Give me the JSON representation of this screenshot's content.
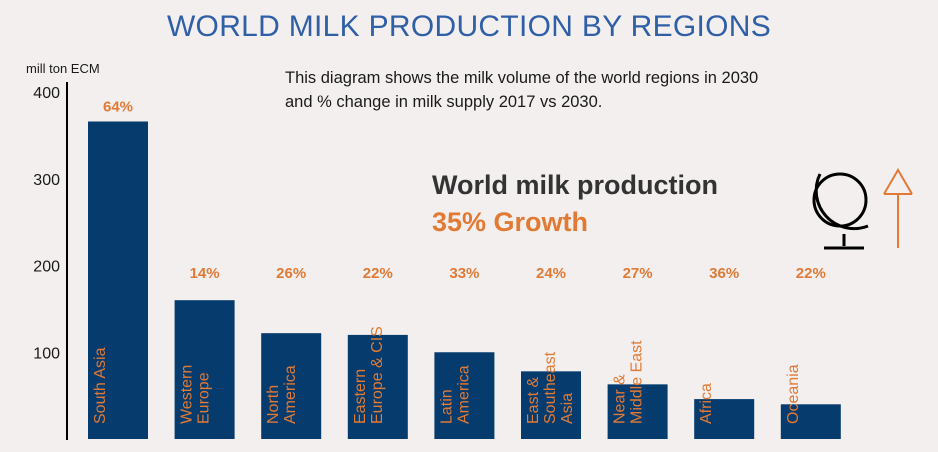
{
  "header": {
    "title": "WORLD MILK PRODUCTION BY REGIONS",
    "description_line1": "This diagram shows the milk volume of the world regions in 2030",
    "description_line2": "and % change in milk supply 2017 vs 2030."
  },
  "highlight": {
    "label": "World milk production",
    "value": "35% Growth"
  },
  "icons": [
    "globe-icon",
    "up-arrow-icon"
  ],
  "colors": {
    "bar": "#063b6d",
    "accent": "#e07a35",
    "title": "#2f5fa6",
    "background": "#f3efee"
  },
  "chart_data": {
    "type": "bar",
    "title": "WORLD MILK PRODUCTION BY REGIONS",
    "ylabel": "mill ton ECM",
    "xlabel": "",
    "ylim": [
      0,
      400
    ],
    "yticks": [
      100,
      200,
      300,
      400
    ],
    "grid": false,
    "categories": [
      "South Asia",
      "Western Europe",
      "North America",
      "Eastern Europe & CIS",
      "Latin America",
      "East & Southeast Asia",
      "Near & Middle East",
      "Africa",
      "Oceania"
    ],
    "category_label_lines": [
      [
        "South Asia"
      ],
      [
        "Western",
        "Europe"
      ],
      [
        "North",
        "America"
      ],
      [
        "Eastern",
        "Europe & CIS"
      ],
      [
        "Latin",
        "America"
      ],
      [
        "East &",
        "Southeast",
        "Asia"
      ],
      [
        "Near &",
        "Middle East"
      ],
      [
        "Africa"
      ],
      [
        "Oceania"
      ]
    ],
    "values": [
      366,
      160,
      122,
      120,
      100,
      78,
      63,
      46,
      40
    ],
    "change_labels": [
      "64%",
      "14%",
      "26%",
      "22%",
      "33%",
      "24%",
      "27%",
      "36%",
      "22%"
    ]
  }
}
